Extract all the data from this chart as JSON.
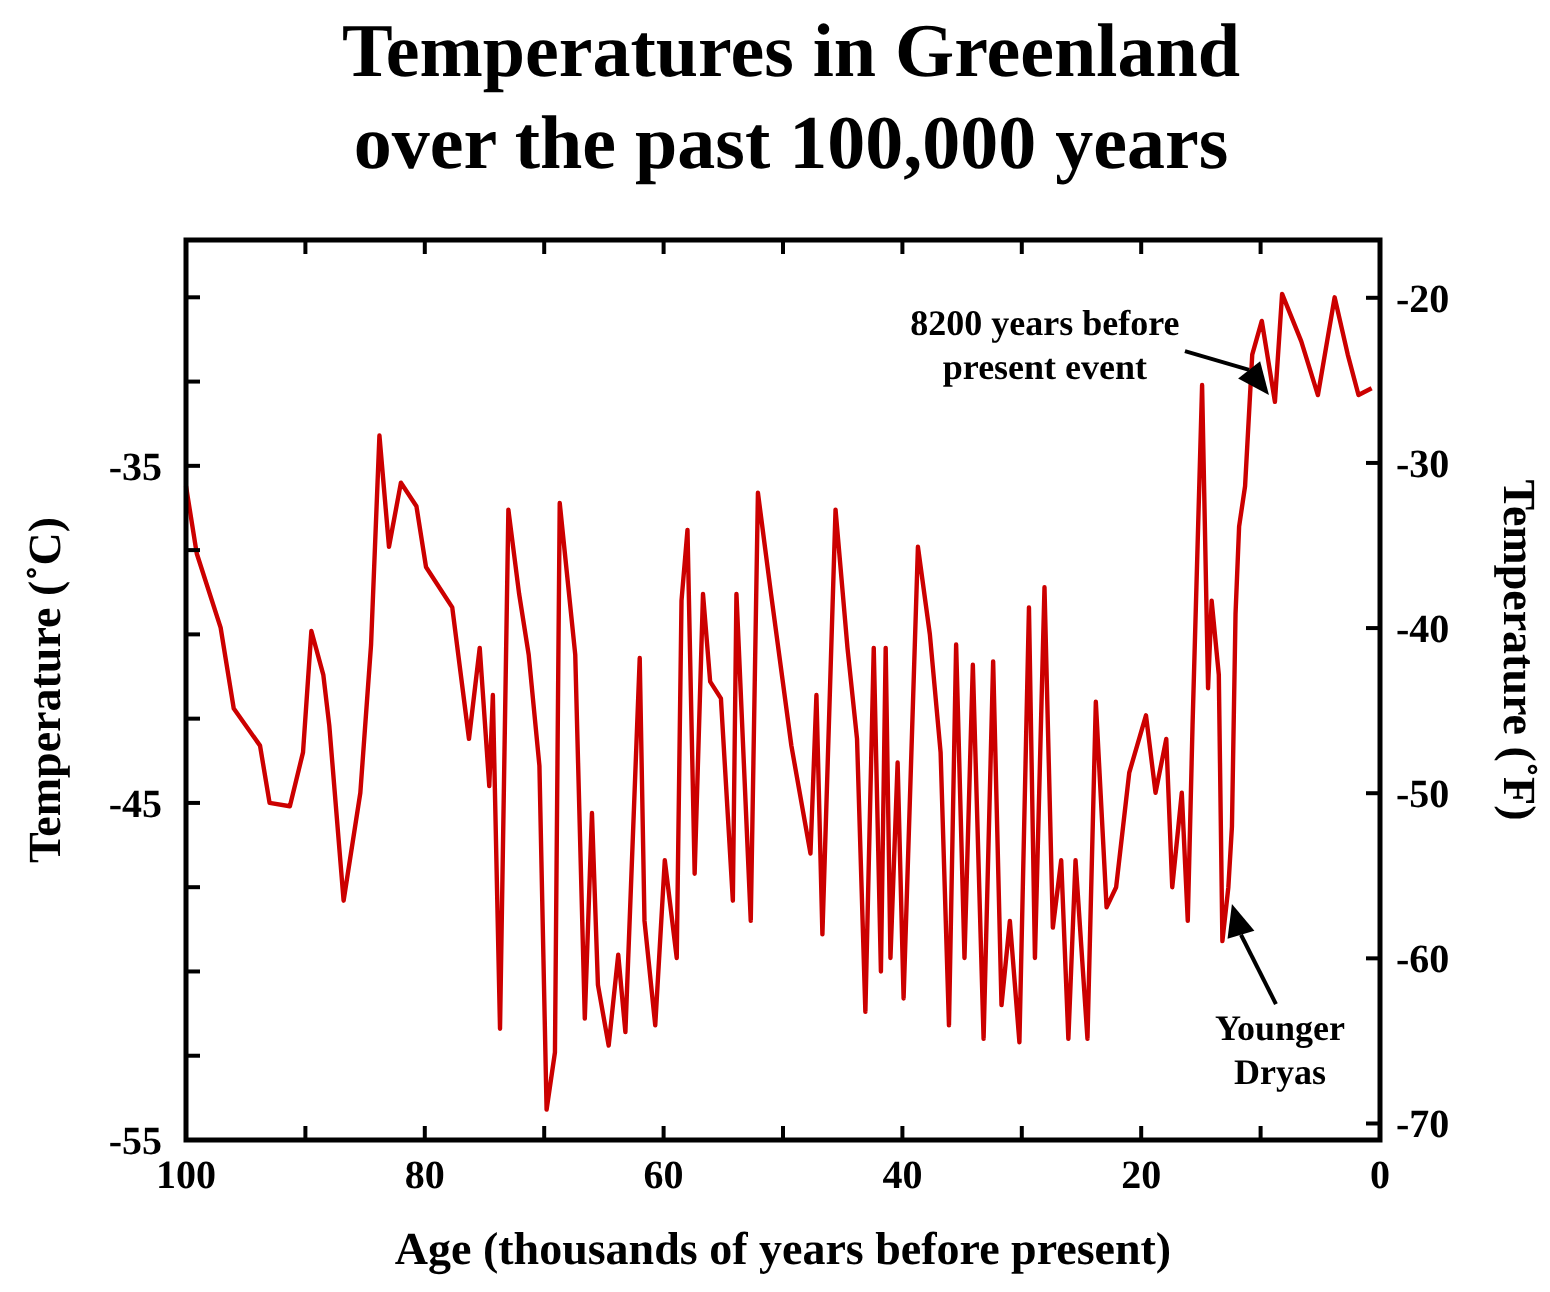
{
  "chart_data": {
    "type": "line",
    "title": "Temperatures in Greenland over the past 100,000 years",
    "xlabel": "Age (thousands of years before present)",
    "ylabel": "Temperature  (˚C)",
    "y2label": "Temperature (˚F)",
    "xlim": [
      100,
      0
    ],
    "xticks": [
      100,
      {
        "value": 90,
        "label": null
      },
      80,
      {
        "value": 70,
        "label": null
      },
      60,
      {
        "value": 50,
        "label": null
      },
      40,
      {
        "value": 30,
        "label": null
      },
      20,
      {
        "value": 10,
        "label": null
      },
      0
    ],
    "ylim": [
      -55,
      -28.3
    ],
    "yticks": [
      -55,
      {
        "value": -52.5,
        "label": null
      },
      {
        "value": -50,
        "label": null
      },
      {
        "value": -47.5,
        "label": null
      },
      -45,
      {
        "value": -42.5,
        "label": null
      },
      {
        "value": -40,
        "label": null
      },
      {
        "value": -37.5,
        "label": null
      },
      -35,
      {
        "value": -32.5,
        "label": null
      },
      {
        "value": -30,
        "label": null
      }
    ],
    "y2lim": [
      -71,
      -16.5
    ],
    "y2ticks": [
      -20,
      -30,
      -40,
      -50,
      -60,
      -70
    ],
    "x": [
      100,
      99.1,
      97.1,
      96,
      93.8,
      93,
      91.3,
      90.2,
      89.5,
      88.5,
      88,
      86.8,
      85.4,
      84.5,
      83.8,
      83,
      82,
      80.7,
      79.9,
      77.7,
      76.3,
      75.4,
      74.6,
      74.3,
      73.7,
      73,
      72.1,
      71.3,
      70.4,
      69.8,
      69.1,
      68.7,
      67.4,
      66.6,
      66,
      65.5,
      64.6,
      63.8,
      63.2,
      62,
      61.6,
      60.7,
      59.9,
      58.9,
      58.5,
      58,
      57.4,
      56.7,
      56.1,
      55.2,
      54.2,
      53.9,
      52.7,
      52.1,
      51,
      49.3,
      47.7,
      47.2,
      46.7,
      45.6,
      44.6,
      43.8,
      43.1,
      42.4,
      41.8,
      41.4,
      41,
      40.4,
      39.9,
      38.7,
      37.7,
      36.8,
      36.1,
      35.5,
      34.8,
      34.1,
      33.2,
      32.4,
      31.7,
      31,
      30.2,
      29.4,
      28.9,
      28.1,
      27.4,
      26.7,
      26.1,
      25.5,
      24.5,
      23.8,
      22.9,
      22.1,
      21,
      19.6,
      18.8,
      17.9,
      17.4,
      16.6,
      16.1,
      15.7,
      14.9,
      14.4,
      14.1,
      13.5,
      13.2,
      12.7,
      12.4,
      12.1,
      11.8,
      11.3,
      10.7,
      9.9,
      8.8,
      8.2,
      6.6,
      5.2,
      3.8,
      2.7,
      1.8,
      0.7
    ],
    "series": [
      {
        "color": "#cc0000",
        "values": [
          -35.6,
          -37.6,
          -39.8,
          -42.2,
          -43.3,
          -45.0,
          -45.1,
          -43.5,
          -39.9,
          -41.2,
          -42.7,
          -47.9,
          -44.7,
          -40.3,
          -34.1,
          -37.4,
          -35.5,
          -36.2,
          -38.0,
          -39.2,
          -43.1,
          -40.4,
          -44.5,
          -41.8,
          -51.7,
          -36.3,
          -38.8,
          -40.6,
          -43.9,
          -54.1,
          -52.4,
          -36.1,
          -40.6,
          -51.4,
          -45.3,
          -50.4,
          -52.2,
          -49.5,
          -51.8,
          -40.7,
          -48.5,
          -51.6,
          -46.7,
          -49.6,
          -39.0,
          -36.9,
          -47.1,
          -38.8,
          -41.4,
          -41.9,
          -47.9,
          -38.8,
          -48.5,
          -35.8,
          -38.8,
          -43.3,
          -46.5,
          -41.8,
          -48.9,
          -36.3,
          -40.4,
          -43.1,
          -51.2,
          -40.4,
          -50.0,
          -40.4,
          -49.6,
          -43.8,
          -50.8,
          -37.4,
          -40.0,
          -43.5,
          -51.6,
          -40.3,
          -49.6,
          -40.9,
          -52.0,
          -40.8,
          -51.0,
          -48.5,
          -52.1,
          -39.2,
          -49.6,
          -38.6,
          -48.7,
          -46.7,
          -52.0,
          -46.7,
          -52.0,
          -42.0,
          -48.1,
          -47.5,
          -44.1,
          -42.4,
          -44.7,
          -43.1,
          -47.5,
          -44.7,
          -48.5,
          -42.7,
          -32.6,
          -41.6,
          -39.0,
          -41.2,
          -49.1,
          -47.5,
          -45.7,
          -39.4,
          -36.8,
          -35.6,
          -31.7,
          -30.7,
          -33.1,
          -29.9,
          -31.3,
          -32.9,
          -30.0,
          -31.7,
          -32.9,
          -32.7
        ]
      }
    ],
    "annotations": [
      {
        "text": "8200 years before present event",
        "x": 9.3,
        "y": -32.9
      },
      {
        "text": "Younger Dryas",
        "x": 12.4,
        "y": -48.0
      }
    ]
  }
}
